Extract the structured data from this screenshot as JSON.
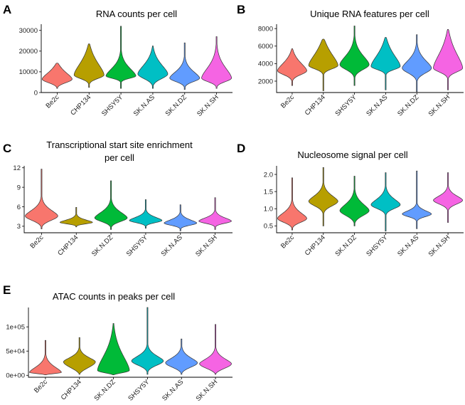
{
  "chart_data": [
    {
      "id": "A",
      "letter": "A",
      "type": "violin",
      "title": [
        "RNA counts per cell"
      ],
      "ylim": [
        0,
        33000
      ],
      "yticks": [
        0,
        10000,
        20000,
        30000
      ],
      "ytick_labels": [
        "0",
        "10000",
        "20000",
        "30000"
      ],
      "xlabel": "",
      "ylabel": "",
      "categories": [
        "Be2c",
        "CHP134",
        "SHSY5Y",
        "SK.N.AS",
        "SK.N.DZ",
        "SK.N.SH"
      ],
      "colors": [
        "#F8766D",
        "#B79F00",
        "#00BA38",
        "#00BFC4",
        "#619CFF",
        "#F564E3"
      ],
      "violins": [
        {
          "min": 2000,
          "max": 14200,
          "mode": 6500,
          "q1": 5000,
          "q3": 9000
        },
        {
          "min": 2500,
          "max": 23500,
          "mode": 8500,
          "q1": 7000,
          "q3": 13000
        },
        {
          "min": 2000,
          "max": 32000,
          "mode": 8000,
          "q1": 7000,
          "q3": 11000
        },
        {
          "min": 2000,
          "max": 22500,
          "mode": 9000,
          "q1": 7000,
          "q3": 12500
        },
        {
          "min": 1500,
          "max": 24000,
          "mode": 7000,
          "q1": 5500,
          "q3": 9500
        },
        {
          "min": 2000,
          "max": 27000,
          "mode": 7000,
          "q1": 5500,
          "q3": 11000
        }
      ]
    },
    {
      "id": "B",
      "letter": "B",
      "type": "violin",
      "title": [
        "Unique RNA features per cell"
      ],
      "ylim": [
        700,
        8500
      ],
      "yticks": [
        2000,
        4000,
        6000,
        8000
      ],
      "ytick_labels": [
        "2000",
        "4000",
        "6000",
        "8000"
      ],
      "xlabel": "",
      "ylabel": "",
      "categories": [
        "Be2c",
        "CHP134",
        "SHSY5Y",
        "SK.N.AS",
        "SK.N.DZ",
        "SK.N.SH"
      ],
      "colors": [
        "#F8766D",
        "#B79F00",
        "#00BA38",
        "#00BFC4",
        "#619CFF",
        "#F564E3"
      ],
      "violins": [
        {
          "min": 1500,
          "max": 5700,
          "mode": 3200,
          "q1": 2800,
          "q3": 3900
        },
        {
          "min": 900,
          "max": 6800,
          "mode": 3800,
          "q1": 3500,
          "q3": 4800
        },
        {
          "min": 1500,
          "max": 8300,
          "mode": 3900,
          "q1": 3400,
          "q3": 4700
        },
        {
          "min": 1000,
          "max": 7000,
          "mode": 3700,
          "q1": 3400,
          "q3": 4700
        },
        {
          "min": 800,
          "max": 7300,
          "mode": 3500,
          "q1": 3000,
          "q3": 4200
        },
        {
          "min": 1000,
          "max": 7900,
          "mode": 3500,
          "q1": 3100,
          "q3": 4800
        }
      ]
    },
    {
      "id": "C",
      "letter": "C",
      "type": "violin",
      "title": [
        "Transcriptional start site enrichment",
        "per cell"
      ],
      "ylim": [
        2,
        12.3
      ],
      "yticks": [
        3,
        6,
        9,
        12
      ],
      "ytick_labels": [
        "3",
        "6",
        "9",
        "12"
      ],
      "xlabel": "",
      "ylabel": "",
      "categories": [
        "Be2c",
        "CHP134",
        "SK.N.DZ",
        "SHSY5Y",
        "SK.N.AS",
        "SK.N.SH"
      ],
      "colors": [
        "#F8766D",
        "#B79F00",
        "#00BA38",
        "#00BFC4",
        "#619CFF",
        "#F564E3"
      ],
      "violins": [
        {
          "min": 2.6,
          "max": 11.8,
          "mode": 4.6,
          "q1": 4.0,
          "q3": 5.3
        },
        {
          "min": 2.9,
          "max": 5.9,
          "mode": 3.6,
          "q1": 3.4,
          "q3": 3.9
        },
        {
          "min": 2.5,
          "max": 10.0,
          "mode": 4.3,
          "q1": 3.8,
          "q3": 5.0
        },
        {
          "min": 2.7,
          "max": 7.1,
          "mode": 3.9,
          "q1": 3.6,
          "q3": 4.3
        },
        {
          "min": 2.3,
          "max": 6.3,
          "mode": 3.5,
          "q1": 3.2,
          "q3": 3.9
        },
        {
          "min": 2.5,
          "max": 7.4,
          "mode": 3.8,
          "q1": 3.5,
          "q3": 4.2
        }
      ]
    },
    {
      "id": "D",
      "letter": "D",
      "type": "violin",
      "title": [
        "Nucleosome signal per cell"
      ],
      "ylim": [
        0.3,
        2.25
      ],
      "yticks": [
        0.5,
        1.0,
        1.5,
        2.0
      ],
      "ytick_labels": [
        "0.5",
        "1.0",
        "1.5",
        "2.0"
      ],
      "xlabel": "",
      "ylabel": "",
      "categories": [
        "Be2c",
        "CHP134",
        "SK.N.DZ",
        "SHSY5Y",
        "SK.N.AS",
        "SK.N.SH"
      ],
      "colors": [
        "#F8766D",
        "#B79F00",
        "#00BA38",
        "#00BFC4",
        "#619CFF",
        "#F564E3"
      ],
      "violins": [
        {
          "min": 0.38,
          "max": 1.9,
          "mode": 0.72,
          "q1": 0.62,
          "q3": 0.85
        },
        {
          "min": 0.5,
          "max": 2.2,
          "mode": 1.22,
          "q1": 1.1,
          "q3": 1.35
        },
        {
          "min": 0.5,
          "max": 1.95,
          "mode": 0.95,
          "q1": 0.82,
          "q3": 1.1
        },
        {
          "min": 0.35,
          "max": 2.05,
          "mode": 1.12,
          "q1": 1.02,
          "q3": 1.25
        },
        {
          "min": 0.42,
          "max": 2.1,
          "mode": 0.85,
          "q1": 0.78,
          "q3": 0.92
        },
        {
          "min": 0.6,
          "max": 2.05,
          "mode": 1.25,
          "q1": 1.15,
          "q3": 1.35
        }
      ]
    },
    {
      "id": "E",
      "letter": "E",
      "type": "violin",
      "title": [
        "ATAC counts in peaks per cell"
      ],
      "ylim": [
        -4000,
        140000
      ],
      "yticks": [
        0,
        50000,
        100000
      ],
      "ytick_labels": [
        "0e+00",
        "5e+04",
        "1e+05"
      ],
      "xlabel": "",
      "ylabel": "",
      "categories": [
        "Be2c",
        "CHP134",
        "SK.N.DZ",
        "SHSY5Y",
        "SK.N.AS",
        "SK.N.SH"
      ],
      "colors": [
        "#F8766D",
        "#B79F00",
        "#00BA38",
        "#00BFC4",
        "#619CFF",
        "#F564E3"
      ],
      "violins": [
        {
          "min": 1000,
          "max": 72000,
          "mode": 6000,
          "q1": 4000,
          "q3": 15000
        },
        {
          "min": 2000,
          "max": 78000,
          "mode": 28000,
          "q1": 18000,
          "q3": 35000
        },
        {
          "min": 1000,
          "max": 107000,
          "mode": 10000,
          "q1": 6000,
          "q3": 35000
        },
        {
          "min": 2000,
          "max": 140000,
          "mode": 30000,
          "q1": 22000,
          "q3": 38000
        },
        {
          "min": 2000,
          "max": 75000,
          "mode": 26000,
          "q1": 18000,
          "q3": 34000
        },
        {
          "min": 2000,
          "max": 105000,
          "mode": 24000,
          "q1": 16000,
          "q3": 32000
        }
      ]
    }
  ]
}
